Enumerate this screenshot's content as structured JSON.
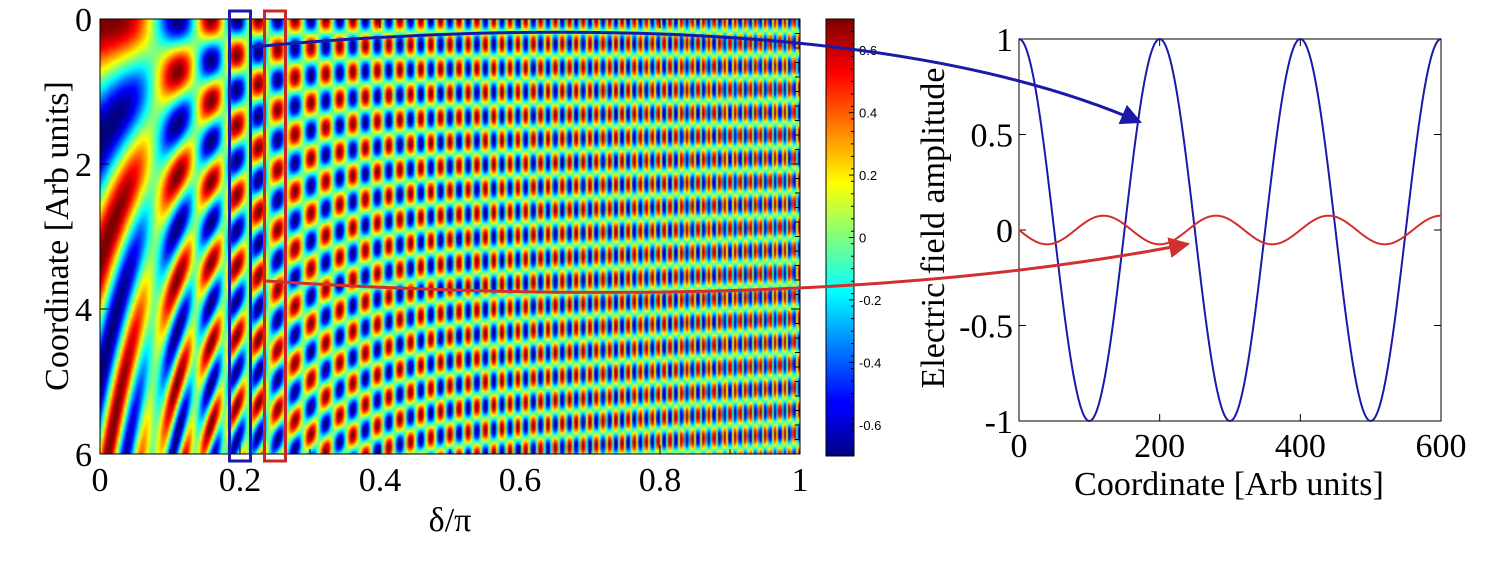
{
  "chart_data": [
    {
      "type": "heatmap",
      "xlabel": "δ/π",
      "ylabel": "Coordinate [Arb units]",
      "xlim": [
        0,
        1
      ],
      "ylim": [
        6,
        0
      ],
      "x_ticks": [
        0,
        0.2,
        0.4,
        0.6,
        0.8,
        1
      ],
      "x_tick_labels": [
        "0",
        "0.2",
        "0.4",
        "0.6",
        "0.8",
        "1"
      ],
      "y_ticks": [
        0,
        2,
        4,
        6
      ],
      "y_tick_labels": [
        "0",
        "2",
        "4",
        "6"
      ],
      "colormap": "jet",
      "colorbar": {
        "range": [
          -0.7,
          0.7
        ],
        "ticks": [
          0.6,
          0.4,
          0.2,
          0,
          -0.2,
          -0.4,
          -0.6
        ],
        "tick_labels": [
          "0.6",
          "0.4",
          "0.2",
          "0",
          "-0.2",
          "-0.4",
          "-0.6"
        ]
      },
      "highlights": [
        {
          "color": "#1a1aa8",
          "x_range": [
            0.185,
            0.215
          ]
        },
        {
          "color": "#c62828",
          "x_range": [
            0.235,
            0.265
          ]
        }
      ]
    },
    {
      "type": "line",
      "xlabel": "Coordinate [Arb units]",
      "ylabel": "Electric field amplitude",
      "xlim": [
        0,
        600
      ],
      "ylim": [
        -1,
        1
      ],
      "x_ticks": [
        0,
        200,
        400,
        600
      ],
      "x_tick_labels": [
        "0",
        "200",
        "400",
        "600"
      ],
      "y_ticks": [
        1,
        0.5,
        0,
        -0.5,
        -1
      ],
      "y_tick_labels": [
        "1",
        "0.5",
        "0",
        "-0.5",
        "-1"
      ],
      "series": [
        {
          "color": "#1a1aa8",
          "amplitude": 1.0,
          "period": 200,
          "phase_deg": 0
        },
        {
          "color": "#d32f2f",
          "amplitude": 0.075,
          "period": 160,
          "phase_deg": 90
        }
      ]
    }
  ],
  "colors": {
    "blue": "#1a1aa8",
    "red": "#d32f2f"
  }
}
